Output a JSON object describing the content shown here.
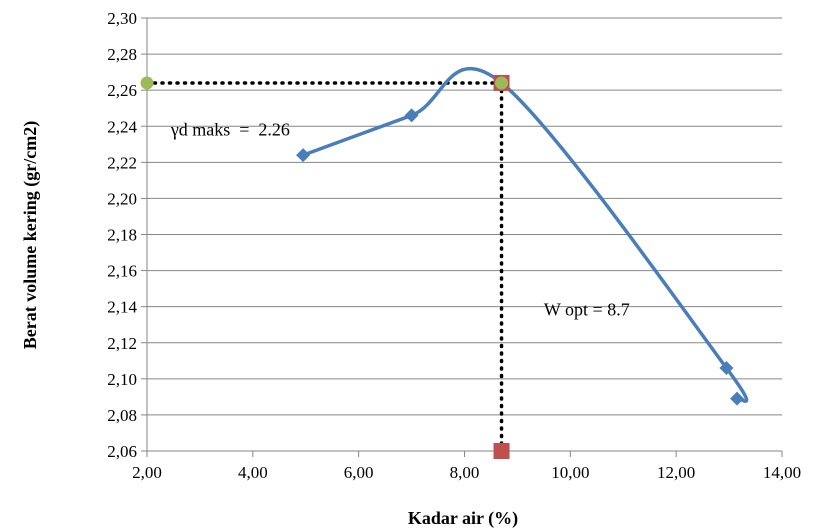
{
  "chart_data": {
    "type": "scatter",
    "xlabel": "Kadar air (%)",
    "ylabel": "Berat volume kering (gr/cm2)",
    "xlim": [
      2,
      14
    ],
    "ylim": [
      2.06,
      2.3
    ],
    "x_ticks": [
      "2,00",
      "4,00",
      "6,00",
      "8,00",
      "10,00",
      "12,00",
      "14,00"
    ],
    "y_ticks": [
      "2,06",
      "2,08",
      "2,10",
      "2,12",
      "2,14",
      "2,16",
      "2,18",
      "2,20",
      "2,22",
      "2,24",
      "2,26",
      "2,28",
      "2,30"
    ],
    "grid": "horizontal",
    "series": [
      {
        "type": "smooth-line",
        "color": "#4a7ebb",
        "marker": "diamond",
        "points": [
          {
            "x": 4.95,
            "y": 2.224
          },
          {
            "x": 7.0,
            "y": 2.246
          },
          {
            "x": 8.7,
            "y": 2.264
          },
          {
            "x": 12.95,
            "y": 2.106
          },
          {
            "x": 13.15,
            "y": 2.089
          }
        ]
      }
    ],
    "guides": {
      "color": "#000000",
      "optimum": {
        "x": 8.7,
        "y": 2.264
      },
      "x_axis_point": {
        "x": 8.7,
        "y": 2.06,
        "color": "#c0504d"
      },
      "y_axis_point": {
        "x": 2.0,
        "y": 2.264,
        "color": "#9bbb59"
      },
      "peak_marker_color": "#c0504d",
      "peak_dot_color": "#9bbb59"
    },
    "annotations": [
      {
        "text": "γd maks  =  2.26",
        "x": 2.45,
        "y": 2.235
      },
      {
        "text": "W opt = 8.7",
        "x": 9.5,
        "y": 2.135
      }
    ]
  }
}
